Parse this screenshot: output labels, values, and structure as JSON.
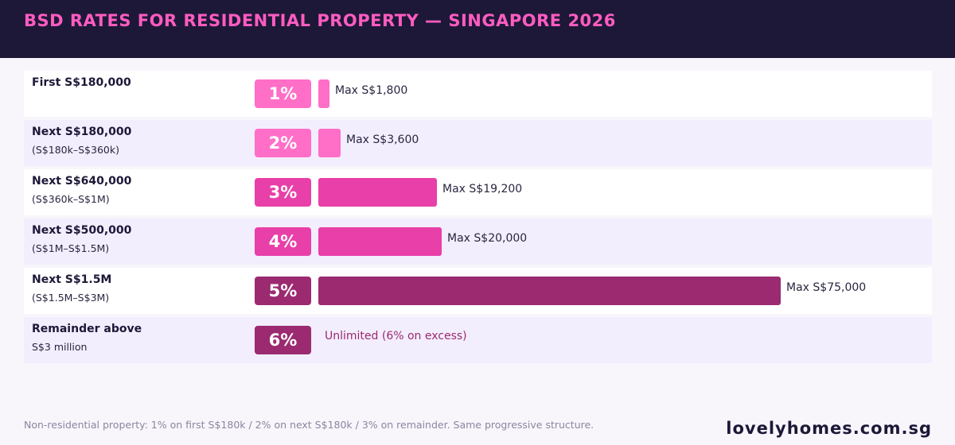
{
  "title": "BSD RATES FOR RESIDENTIAL PROPERTY — SINGAPORE 2026",
  "footnote": "Non-residential property: 1% on first S$180k / 2% on next S$180k / 3% on remainder. Same progressive structure.",
  "brand": "lovelyhomes.com.sg",
  "colors": {
    "header_bg": "#1d1838",
    "title": "#ff5cc0",
    "pink_light": "#ff6ec7",
    "pink_mid": "#e83fa8",
    "plum": "#9b2a70"
  },
  "chart_data": {
    "type": "bar",
    "orientation": "horizontal",
    "rows": [
      {
        "label": "First S$180,000",
        "sublabel": "",
        "rate": "1%",
        "max_tax": 1800,
        "value_label": "Max S$1,800",
        "color": "#ff6ec7"
      },
      {
        "label": "Next S$180,000",
        "sublabel": "(S$180k–S$360k)",
        "rate": "2%",
        "max_tax": 3600,
        "value_label": "Max S$3,600",
        "color": "#ff6ec7"
      },
      {
        "label": "Next S$640,000",
        "sublabel": "(S$360k–S$1M)",
        "rate": "3%",
        "max_tax": 19200,
        "value_label": "Max S$19,200",
        "color": "#e83fa8"
      },
      {
        "label": "Next S$500,000",
        "sublabel": "(S$1M–S$1.5M)",
        "rate": "4%",
        "max_tax": 20000,
        "value_label": "Max S$20,000",
        "color": "#e83fa8"
      },
      {
        "label": "Next S$1.5M",
        "sublabel": "(S$1.5M–S$3M)",
        "rate": "5%",
        "max_tax": 75000,
        "value_label": "Max S$75,000",
        "color": "#9b2a70"
      },
      {
        "label": "Remainder above",
        "sublabel": "S$3 million",
        "rate": "6%",
        "max_tax": null,
        "value_label": "Unlimited (6% on excess)",
        "color": "#9b2a70"
      }
    ]
  }
}
